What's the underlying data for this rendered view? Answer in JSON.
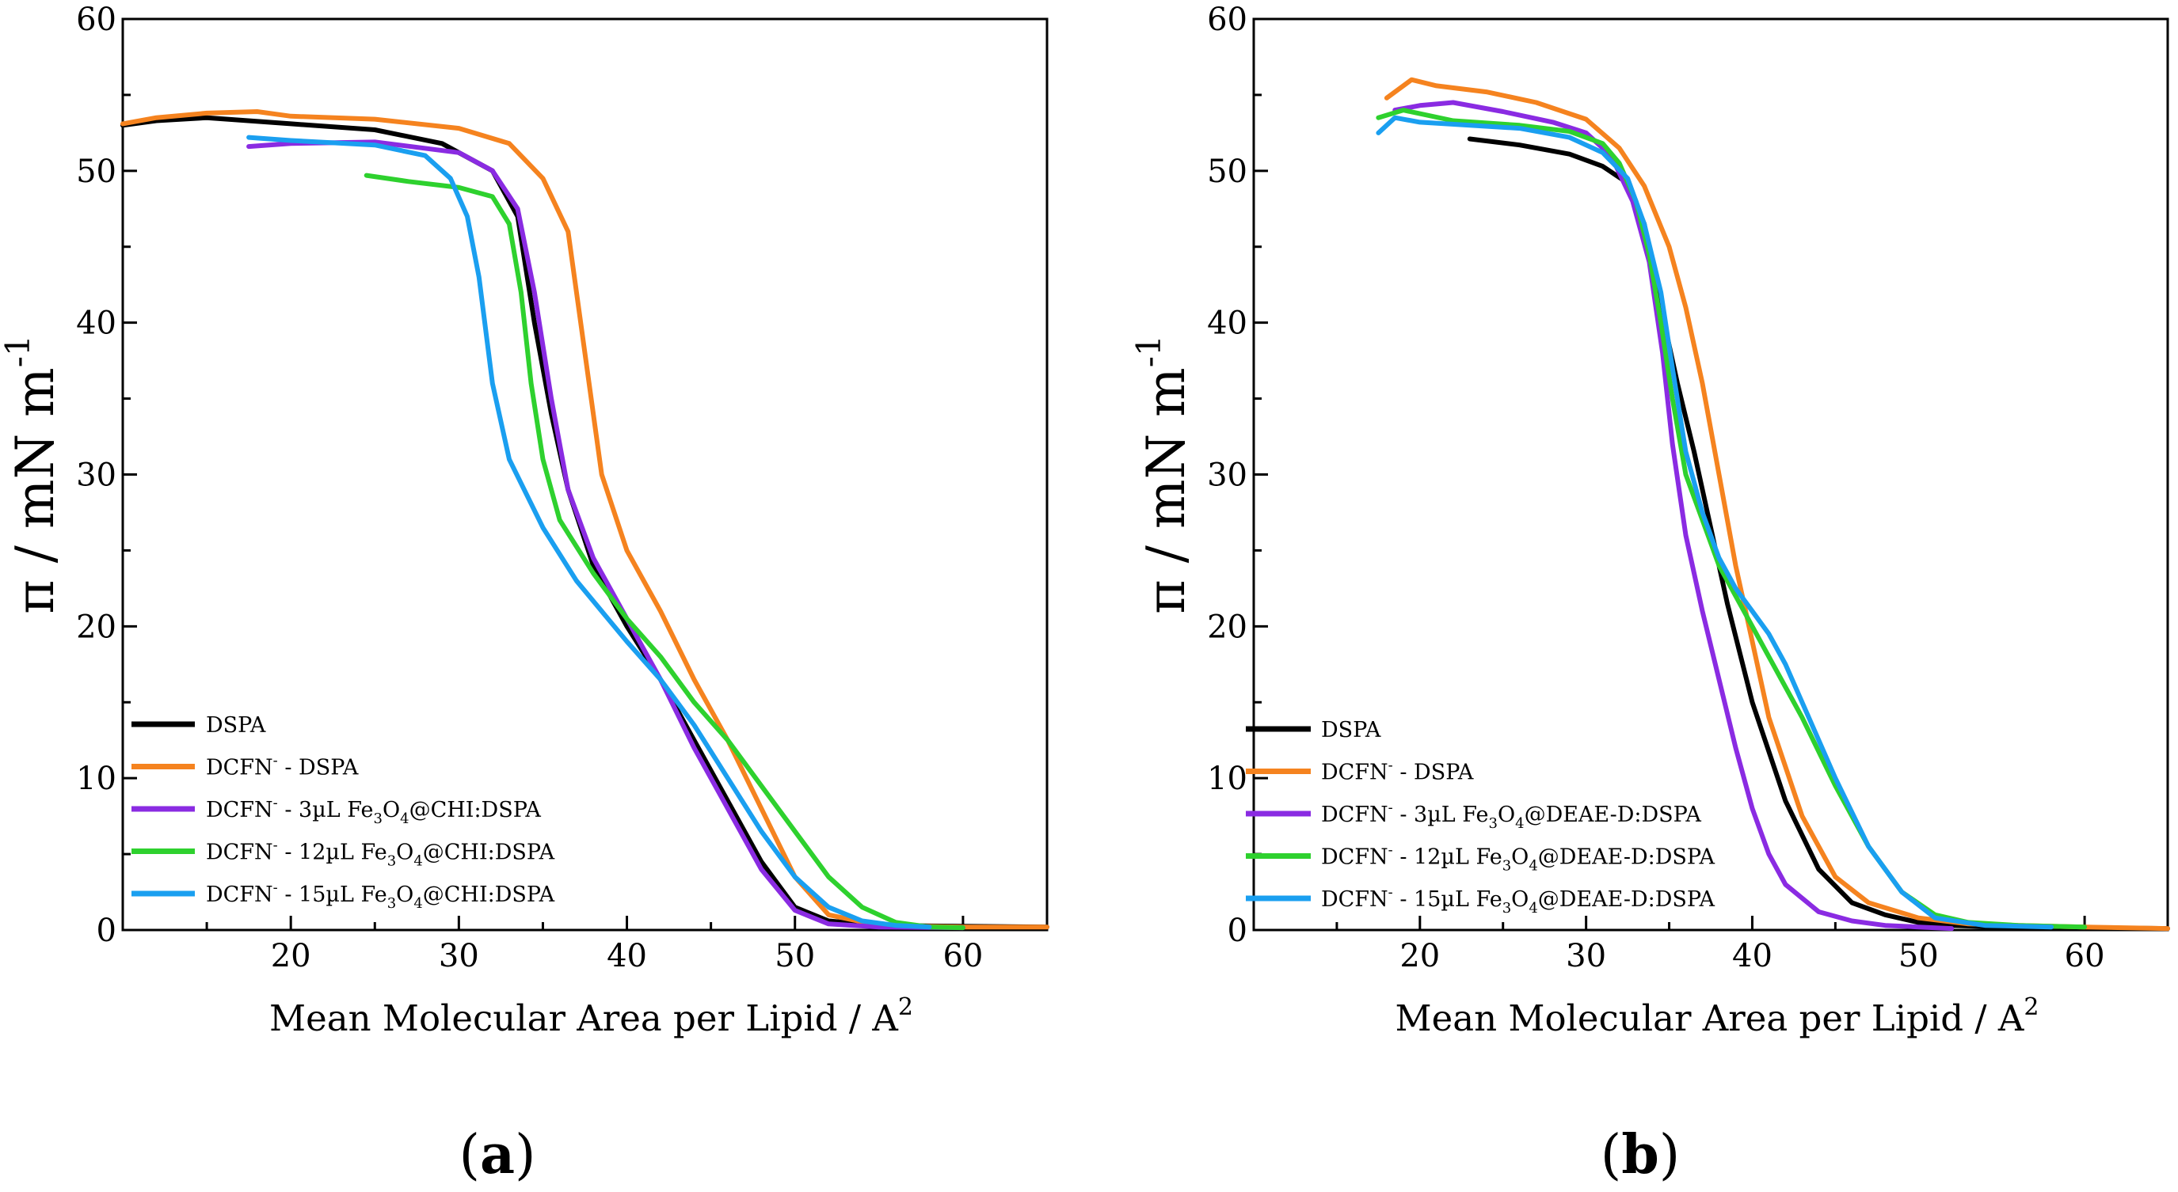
{
  "figure": {
    "panels": [
      {
        "label_open": "(",
        "label_letter": "a",
        "label_close": ")"
      },
      {
        "label_open": "(",
        "label_letter": "b",
        "label_close": ")"
      }
    ]
  },
  "chart_data": [
    {
      "type": "line",
      "panel": "a",
      "xlabel": "Mean Molecular Area per Lipid / A",
      "xlabel_sup": "2",
      "ylabel": "π / mN m",
      "ylabel_sup": "-1",
      "xlim": [
        10,
        65
      ],
      "ylim": [
        0,
        60
      ],
      "xticks": [
        20,
        30,
        40,
        50,
        60
      ],
      "yticks": [
        0,
        10,
        20,
        30,
        40,
        50,
        60
      ],
      "legend_position": "bottom-left",
      "series": [
        {
          "name": "DSPA",
          "legend": [
            "DSPA"
          ],
          "color": "#000000",
          "x": [
            10,
            12,
            15,
            20,
            25,
            29,
            32,
            33.5,
            34.5,
            35.5,
            36.5,
            38,
            40,
            42,
            44,
            46,
            48,
            50,
            52,
            55,
            60,
            65
          ],
          "y": [
            53,
            53.3,
            53.5,
            53.1,
            52.7,
            51.8,
            50,
            47,
            40,
            34,
            29,
            24,
            20,
            16.5,
            12.5,
            8.5,
            4.5,
            1.5,
            0.6,
            0.3,
            0.25,
            0.2
          ]
        },
        {
          "name": "DCFN- - DSPA",
          "legend": [
            "DCFN",
            "-",
            " - DSPA"
          ],
          "color": "#f5831f",
          "x": [
            10,
            12,
            15,
            18,
            20,
            25,
            30,
            33,
            35,
            36.5,
            37.5,
            38.5,
            40,
            42,
            44,
            46,
            48,
            50,
            52,
            55,
            60,
            65
          ],
          "y": [
            53.1,
            53.5,
            53.8,
            53.9,
            53.6,
            53.4,
            52.8,
            51.8,
            49.5,
            46,
            38,
            30,
            25,
            21,
            16.5,
            12.5,
            8,
            3.5,
            1,
            0.3,
            0.2,
            0.2
          ]
        },
        {
          "name": "DCFN- - 3µL Fe3O4@CHI:DSPA",
          "legend": [
            "DCFN",
            "-",
            " - 3µL Fe",
            "3",
            "O",
            "4",
            "@CHI:DSPA"
          ],
          "color": "#8a2be2",
          "x": [
            17.5,
            20,
            25,
            30,
            32,
            33.5,
            34.5,
            35.5,
            36.5,
            38,
            40,
            42,
            44,
            46,
            48,
            50,
            52,
            55,
            60
          ],
          "y": [
            51.6,
            51.8,
            51.9,
            51.2,
            50,
            47.5,
            42,
            35,
            29,
            24.5,
            20.5,
            16.5,
            12,
            8,
            4,
            1.3,
            0.4,
            0.2,
            0.15
          ]
        },
        {
          "name": "DCFN- - 12µL Fe3O4@CHI:DSPA",
          "legend": [
            "DCFN",
            "-",
            " - 12µL Fe",
            "3",
            "O",
            "4",
            "@CHI:DSPA"
          ],
          "color": "#2ed12e",
          "x": [
            24.5,
            27,
            30,
            32,
            33,
            33.7,
            34.3,
            35,
            36,
            38,
            40,
            42,
            44,
            46,
            48,
            50,
            52,
            54,
            56,
            58,
            60
          ],
          "y": [
            49.7,
            49.3,
            48.9,
            48.3,
            46.5,
            42,
            36,
            31,
            27,
            23.5,
            20.5,
            18,
            15,
            12.5,
            9.5,
            6.5,
            3.5,
            1.5,
            0.5,
            0.2,
            0.15
          ]
        },
        {
          "name": "DCFN- - 15µL Fe3O4@CHI:DSPA",
          "legend": [
            "DCFN",
            "-",
            " - 15µL Fe",
            "3",
            "O",
            "4",
            "@CHI:DSPA"
          ],
          "color": "#1a9ff0",
          "x": [
            17.5,
            20,
            25,
            28,
            29.5,
            30.5,
            31.2,
            32,
            33,
            35,
            37,
            40,
            42,
            44,
            46,
            48,
            50,
            52,
            54,
            56,
            58
          ],
          "y": [
            52.2,
            52,
            51.7,
            51,
            49.5,
            47,
            43,
            36,
            31,
            26.5,
            23,
            19,
            16.5,
            13.5,
            10,
            6.5,
            3.5,
            1.5,
            0.6,
            0.3,
            0.2
          ]
        }
      ]
    },
    {
      "type": "line",
      "panel": "b",
      "xlabel": "Mean Molecular Area per Lipid / A",
      "xlabel_sup": "2",
      "ylabel": "π / mN m",
      "ylabel_sup": "-1",
      "xlim": [
        10,
        65
      ],
      "ylim": [
        0,
        60
      ],
      "xticks": [
        20,
        30,
        40,
        50,
        60
      ],
      "yticks": [
        0,
        10,
        20,
        30,
        40,
        50,
        60
      ],
      "legend_position": "bottom-left",
      "series": [
        {
          "name": "DSPA",
          "legend": [
            "DSPA"
          ],
          "color": "#000000",
          "x": [
            23,
            26,
            29,
            31,
            32.5,
            33.5,
            34.5,
            35.5,
            36.5,
            37.5,
            38.5,
            40,
            42,
            44,
            46,
            48,
            50,
            52,
            55,
            60,
            65
          ],
          "y": [
            52.1,
            51.7,
            51.1,
            50.3,
            49.2,
            46.5,
            41,
            36,
            31.5,
            26.5,
            21.5,
            15,
            8.5,
            4,
            1.8,
            1,
            0.5,
            0.3,
            0.2,
            0.15,
            0.1
          ]
        },
        {
          "name": "DCFN- - DSPA",
          "legend": [
            "DCFN",
            "-",
            " - DSPA"
          ],
          "color": "#f5831f",
          "x": [
            18,
            19.5,
            21,
            24,
            27,
            30,
            32,
            33.5,
            35,
            36,
            37,
            38,
            39,
            40,
            41,
            43,
            45,
            47,
            50,
            53,
            56,
            60,
            65
          ],
          "y": [
            54.8,
            56,
            55.6,
            55.2,
            54.5,
            53.4,
            51.5,
            49,
            45,
            41,
            36,
            30,
            24,
            19,
            14,
            7.5,
            3.5,
            1.8,
            0.8,
            0.4,
            0.3,
            0.2,
            0.1
          ]
        },
        {
          "name": "DCFN- - 3µL Fe3O4@DEAE-D:DSPA",
          "legend": [
            "DCFN",
            "-",
            " - 3µL Fe",
            "3",
            "O",
            "4",
            "@DEAE-D:DSPA"
          ],
          "color": "#8a2be2",
          "x": [
            18.5,
            20,
            22,
            25,
            28,
            30,
            31.5,
            32.8,
            33.8,
            34.6,
            35.2,
            36,
            37,
            38,
            39,
            40,
            41,
            42,
            44,
            46,
            48,
            50,
            52
          ],
          "y": [
            54,
            54.3,
            54.5,
            53.9,
            53.2,
            52.5,
            51,
            48,
            44,
            38,
            32,
            26,
            21,
            16.5,
            12,
            8,
            5,
            3,
            1.2,
            0.6,
            0.3,
            0.2,
            0.1
          ]
        },
        {
          "name": "DCFN- - 12µL Fe3O4@DEAE-D:DSPA",
          "legend": [
            "DCFN",
            "-",
            " - 12µL Fe",
            "3",
            "O",
            "4",
            "@DEAE-D:DSPA"
          ],
          "color": "#2ed12e",
          "x": [
            17.5,
            19,
            22,
            26,
            29,
            31,
            32,
            33,
            33.8,
            34.5,
            35.2,
            36,
            37,
            38,
            39.5,
            41,
            43,
            45,
            47,
            49,
            51,
            53,
            56,
            60
          ],
          "y": [
            53.5,
            54,
            53.3,
            53,
            52.6,
            51.8,
            50.5,
            48,
            44.5,
            40,
            35,
            30,
            27,
            24,
            21,
            18,
            14,
            9.5,
            5.5,
            2.5,
            1,
            0.5,
            0.3,
            0.2
          ]
        },
        {
          "name": "DCFN- - 15µL Fe3O4@DEAE-D:DSPA",
          "legend": [
            "DCFN",
            "-",
            " - 15µL Fe",
            "3",
            "O",
            "4",
            "@DEAE-D:DSPA"
          ],
          "color": "#1a9ff0",
          "x": [
            17.5,
            18.5,
            20,
            23,
            26,
            29,
            31,
            32.5,
            33.5,
            34.5,
            35.2,
            36,
            37,
            38,
            39,
            40,
            41,
            42,
            43,
            45,
            47,
            49,
            51,
            54,
            58
          ],
          "y": [
            52.5,
            53.5,
            53.2,
            53,
            52.8,
            52.2,
            51.2,
            49.5,
            46.5,
            42,
            37,
            31.5,
            27.5,
            24.5,
            22.5,
            21,
            19.5,
            17.5,
            15,
            10,
            5.5,
            2.5,
            0.8,
            0.3,
            0.2
          ]
        }
      ]
    }
  ]
}
